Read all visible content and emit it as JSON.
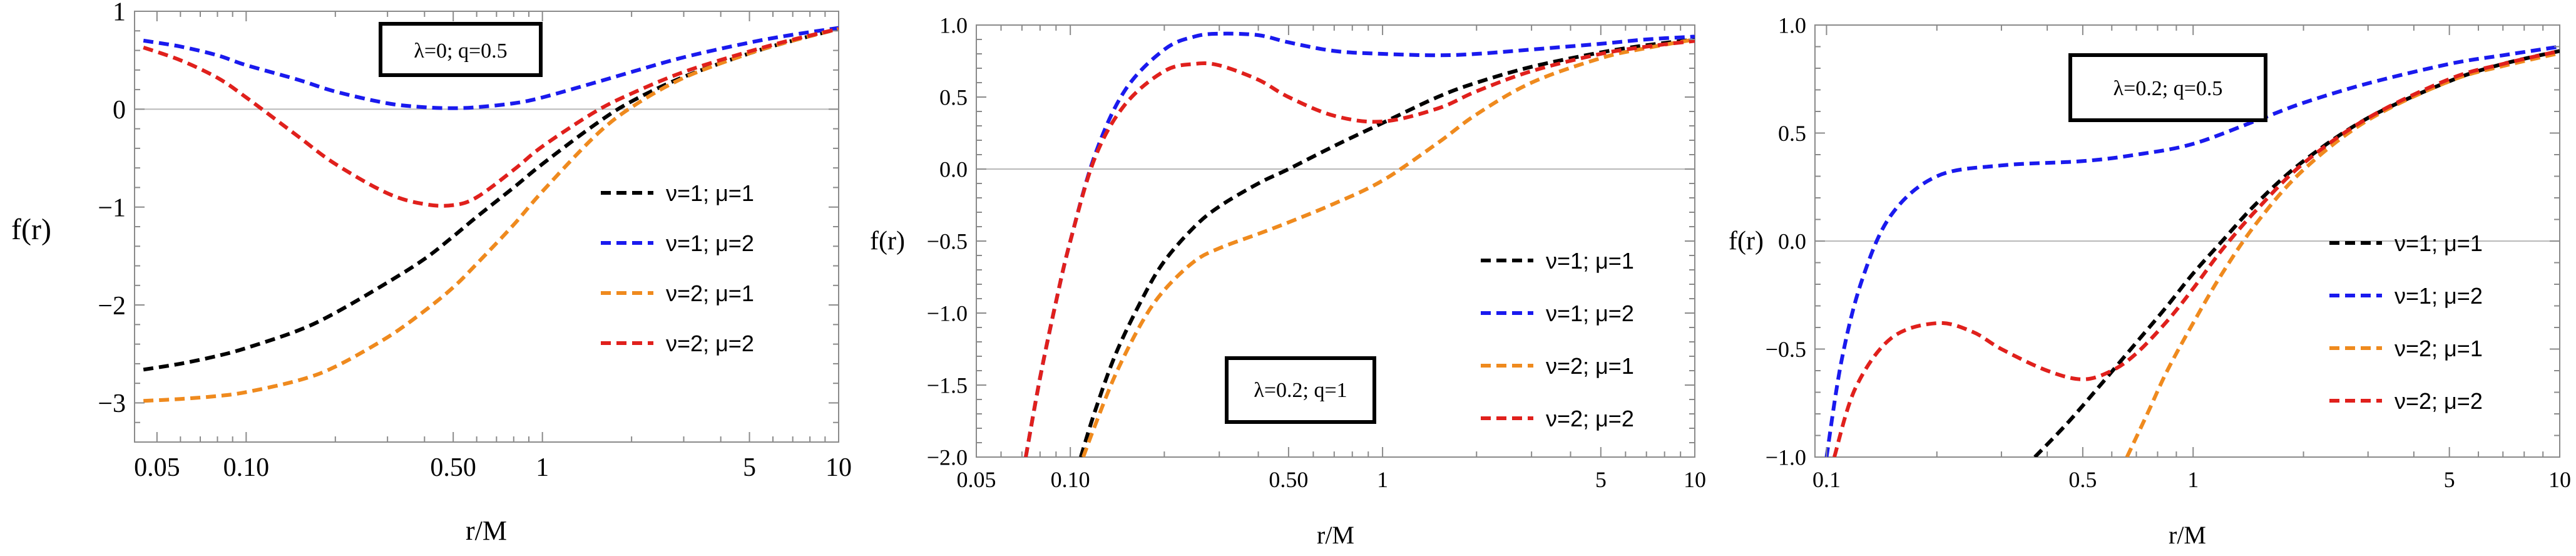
{
  "colors": {
    "black": "#000000",
    "blue": "#1a1aee",
    "orange": "#ef8a1e",
    "red": "#e0201c",
    "zeroline": "#b8b8b8",
    "frame": "#8a8a8a"
  },
  "chart_data": [
    {
      "type": "line",
      "xscale": "log",
      "xlim": [
        0.042,
        10
      ],
      "ylim": [
        -3.4,
        1.0
      ],
      "xlabel": "r/M",
      "ylabel": "f(r)",
      "xticks": [
        0.05,
        0.1,
        0.5,
        1,
        5,
        10
      ],
      "xtick_labels": [
        "0.05",
        "0.10",
        "0.50",
        "1",
        "5",
        "10"
      ],
      "yticks": [
        -3,
        -2,
        -1,
        0,
        1
      ],
      "ytick_labels": [
        "−3",
        "−2",
        "−1",
        "0",
        "1"
      ],
      "box_label": "λ=0; q=0.5",
      "legend_position": "right-middle",
      "series": [
        {
          "name": "ν=1; μ=1",
          "color": "black",
          "x": [
            0.045,
            0.06,
            0.08,
            0.1,
            0.15,
            0.2,
            0.3,
            0.4,
            0.5,
            0.6,
            0.8,
            1,
            1.5,
            2,
            3,
            5,
            7,
            10
          ],
          "y": [
            -2.66,
            -2.6,
            -2.52,
            -2.44,
            -2.26,
            -2.08,
            -1.77,
            -1.53,
            -1.3,
            -1.1,
            -0.8,
            -0.56,
            -0.16,
            0.08,
            0.33,
            0.57,
            0.7,
            0.82
          ]
        },
        {
          "name": "ν=1; μ=2",
          "color": "blue",
          "x": [
            0.045,
            0.06,
            0.08,
            0.1,
            0.15,
            0.2,
            0.3,
            0.4,
            0.5,
            0.6,
            0.8,
            1,
            1.5,
            2,
            3,
            5,
            7,
            10
          ],
          "y": [
            0.7,
            0.64,
            0.55,
            0.45,
            0.3,
            0.18,
            0.06,
            0.02,
            0.01,
            0.02,
            0.06,
            0.12,
            0.27,
            0.38,
            0.53,
            0.68,
            0.76,
            0.83
          ]
        },
        {
          "name": "ν=2; μ=1",
          "color": "orange",
          "x": [
            0.045,
            0.06,
            0.08,
            0.1,
            0.15,
            0.2,
            0.3,
            0.4,
            0.5,
            0.6,
            0.8,
            1,
            1.5,
            2,
            3,
            5,
            7,
            10
          ],
          "y": [
            -2.98,
            -2.96,
            -2.93,
            -2.89,
            -2.77,
            -2.63,
            -2.33,
            -2.06,
            -1.82,
            -1.58,
            -1.18,
            -0.84,
            -0.28,
            0.02,
            0.32,
            0.57,
            0.7,
            0.82
          ]
        },
        {
          "name": "ν=2; μ=2",
          "color": "red",
          "x": [
            0.045,
            0.06,
            0.08,
            0.1,
            0.15,
            0.2,
            0.3,
            0.4,
            0.5,
            0.6,
            0.8,
            1,
            1.5,
            2,
            3,
            5,
            7,
            10
          ],
          "y": [
            0.63,
            0.5,
            0.32,
            0.12,
            -0.28,
            -0.56,
            -0.86,
            -0.97,
            -0.98,
            -0.9,
            -0.62,
            -0.38,
            -0.03,
            0.16,
            0.38,
            0.59,
            0.71,
            0.82
          ]
        }
      ]
    },
    {
      "type": "line",
      "xscale": "log",
      "xlim": [
        0.05,
        10
      ],
      "ylim": [
        -2.0,
        1.0
      ],
      "xlabel": "r/M",
      "ylabel": "f(r)",
      "xticks": [
        0.05,
        0.1,
        0.5,
        1,
        5,
        10
      ],
      "xtick_labels": [
        "0.05",
        "0.10",
        "0.50",
        "1",
        "5",
        "10"
      ],
      "yticks": [
        -2,
        -1.5,
        -1,
        -0.5,
        0,
        0.5,
        1
      ],
      "ytick_labels": [
        "−2.0",
        "−1.5",
        "−1.0",
        "−0.5",
        "0.0",
        "0.5",
        "1.0"
      ],
      "box_label": "λ=0.2; q=1",
      "legend_position": "bottom-right",
      "series": [
        {
          "name": "ν=1; μ=1",
          "color": "black",
          "x": [
            0.108,
            0.12,
            0.14,
            0.17,
            0.2,
            0.25,
            0.3,
            0.4,
            0.5,
            0.7,
            1,
            1.5,
            2,
            3,
            5,
            7,
            10
          ],
          "y": [
            -2.0,
            -1.68,
            -1.28,
            -0.9,
            -0.64,
            -0.4,
            -0.26,
            -0.1,
            0.0,
            0.16,
            0.32,
            0.5,
            0.6,
            0.71,
            0.81,
            0.86,
            0.9
          ]
        },
        {
          "name": "ν=1; μ=2",
          "color": "blue",
          "x": [
            0.072,
            0.08,
            0.09,
            0.1,
            0.12,
            0.15,
            0.2,
            0.25,
            0.3,
            0.4,
            0.5,
            0.7,
            1,
            1.5,
            2,
            3,
            5,
            7,
            10
          ],
          "y": [
            -2.0,
            -1.45,
            -0.92,
            -0.5,
            0.1,
            0.55,
            0.83,
            0.92,
            0.94,
            0.93,
            0.88,
            0.82,
            0.8,
            0.79,
            0.8,
            0.83,
            0.87,
            0.9,
            0.92
          ]
        },
        {
          "name": "ν=2; μ=1",
          "color": "orange",
          "x": [
            0.11,
            0.12,
            0.14,
            0.17,
            0.2,
            0.25,
            0.3,
            0.4,
            0.5,
            0.7,
            1,
            1.5,
            2,
            3,
            5,
            7,
            10
          ],
          "y": [
            -2.0,
            -1.78,
            -1.42,
            -1.06,
            -0.84,
            -0.64,
            -0.55,
            -0.45,
            -0.37,
            -0.24,
            -0.08,
            0.18,
            0.38,
            0.6,
            0.77,
            0.84,
            0.9
          ]
        },
        {
          "name": "ν=2; μ=2",
          "color": "red",
          "x": [
            0.072,
            0.08,
            0.09,
            0.1,
            0.12,
            0.15,
            0.2,
            0.25,
            0.3,
            0.4,
            0.5,
            0.7,
            1,
            1.5,
            2,
            3,
            5,
            7,
            10
          ],
          "y": [
            -2.0,
            -1.45,
            -0.92,
            -0.5,
            0.08,
            0.45,
            0.68,
            0.73,
            0.72,
            0.62,
            0.5,
            0.37,
            0.33,
            0.42,
            0.54,
            0.68,
            0.8,
            0.85,
            0.89
          ]
        }
      ]
    },
    {
      "type": "line",
      "xscale": "log",
      "xlim": [
        0.093,
        10
      ],
      "ylim": [
        -1.0,
        1.0
      ],
      "xlabel": "r/M",
      "ylabel": "f(r)",
      "xticks": [
        0.1,
        0.5,
        1,
        5,
        10
      ],
      "xtick_labels": [
        "0.1",
        "0.5",
        "1",
        "5",
        "10"
      ],
      "yticks": [
        -1,
        -0.5,
        0,
        0.5,
        1
      ],
      "ytick_labels": [
        "−1.0",
        "−0.5",
        "0.0",
        "0.5",
        "1.0"
      ],
      "box_label": "λ=0.2; q=0.5",
      "legend_position": "right-middle",
      "series": [
        {
          "name": "ν=1; μ=1",
          "color": "black",
          "x": [
            0.37,
            0.45,
            0.55,
            0.7,
            0.85,
            1,
            1.2,
            1.5,
            2,
            3,
            5,
            7,
            10
          ],
          "y": [
            -1.0,
            -0.85,
            -0.68,
            -0.47,
            -0.3,
            -0.15,
            0.0,
            0.18,
            0.37,
            0.57,
            0.74,
            0.82,
            0.88
          ]
        },
        {
          "name": "ν=1; μ=2",
          "color": "blue",
          "x": [
            0.1,
            0.11,
            0.125,
            0.15,
            0.2,
            0.3,
            0.5,
            0.7,
            1,
            1.5,
            2,
            3,
            5,
            7,
            10
          ],
          "y": [
            -1.0,
            -0.55,
            -0.18,
            0.12,
            0.3,
            0.35,
            0.37,
            0.4,
            0.45,
            0.56,
            0.64,
            0.73,
            0.82,
            0.86,
            0.9
          ]
        },
        {
          "name": "ν=2; μ=1",
          "color": "orange",
          "x": [
            0.66,
            0.75,
            0.85,
            1,
            1.2,
            1.5,
            2,
            3,
            5,
            7,
            10
          ],
          "y": [
            -1.0,
            -0.8,
            -0.6,
            -0.38,
            -0.15,
            0.09,
            0.33,
            0.56,
            0.74,
            0.81,
            0.87
          ]
        },
        {
          "name": "ν=2; μ=2",
          "color": "red",
          "x": [
            0.105,
            0.12,
            0.15,
            0.2,
            0.25,
            0.3,
            0.4,
            0.5,
            0.6,
            0.7,
            0.85,
            1,
            1.2,
            1.5,
            2,
            3,
            5,
            7,
            10
          ],
          "y": [
            -1.0,
            -0.68,
            -0.45,
            -0.38,
            -0.42,
            -0.5,
            -0.6,
            -0.64,
            -0.6,
            -0.52,
            -0.37,
            -0.22,
            -0.04,
            0.15,
            0.36,
            0.57,
            0.75,
            0.82,
            0.88
          ]
        }
      ]
    }
  ]
}
